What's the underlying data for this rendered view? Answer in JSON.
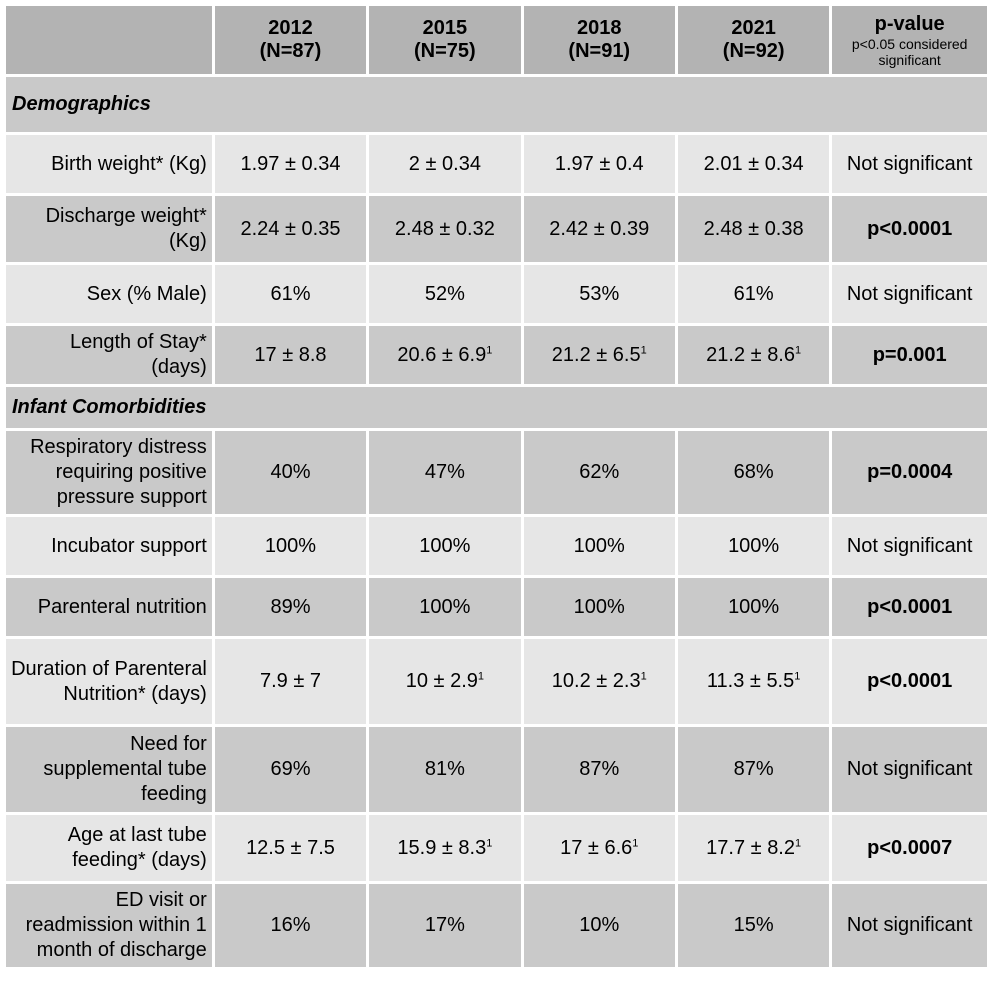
{
  "header": {
    "columns": [
      {
        "year": "2012",
        "n": "(N=87)"
      },
      {
        "year": "2015",
        "n": "(N=75)"
      },
      {
        "year": "2018",
        "n": "(N=91)"
      },
      {
        "year": "2021",
        "n": "(N=92)"
      }
    ],
    "pvalue_title": "p-value",
    "pvalue_note": "p<0.05 considered significant"
  },
  "sections": {
    "demographics": "Demographics",
    "comorbidities": "Infant Comorbidities"
  },
  "rows": [
    {
      "label": "Birth weight* (Kg)",
      "values": [
        "1.97 ± 0.34",
        "2 ± 0.34",
        "1.97 ± 0.4",
        "2.01 ± 0.34"
      ],
      "p": "Not significant",
      "sig": false
    },
    {
      "label": "Discharge weight* (Kg)",
      "values": [
        "2.24 ± 0.35",
        "2.48 ± 0.32",
        "2.42 ± 0.39",
        "2.48 ± 0.38"
      ],
      "p": "p<0.0001",
      "sig": true
    },
    {
      "label": "Sex (% Male)",
      "values": [
        "61%",
        "52%",
        "53%",
        "61%"
      ],
      "p": "Not significant",
      "sig": false
    },
    {
      "label": "Length of Stay* (days)",
      "values": [
        "17 ± 8.8",
        "20.6 ± 6.9",
        "21.2 ± 6.5",
        "21.2 ± 8.6"
      ],
      "sups": [
        "",
        "1",
        "1",
        "1"
      ],
      "p": "p=0.001",
      "sig": true
    },
    {
      "label": "Respiratory distress requiring positive pressure support",
      "values": [
        "40%",
        "47%",
        "62%",
        "68%"
      ],
      "p": "p=0.0004",
      "sig": true
    },
    {
      "label": "Incubator support",
      "values": [
        "100%",
        "100%",
        "100%",
        "100%"
      ],
      "p": "Not significant",
      "sig": false
    },
    {
      "label": "Parenteral nutrition",
      "values": [
        "89%",
        "100%",
        "100%",
        "100%"
      ],
      "p": "p<0.0001",
      "sig": true
    },
    {
      "label": "Duration of Parenteral Nutrition* (days)",
      "values": [
        "7.9 ± 7",
        "10 ± 2.9",
        "10.2 ± 2.3",
        "11.3 ± 5.5"
      ],
      "sups": [
        "",
        "1",
        "1",
        "1"
      ],
      "p": "p<0.0001",
      "sig": true
    },
    {
      "label": "Need for supplemental tube feeding",
      "values": [
        "69%",
        "81%",
        "87%",
        "87%"
      ],
      "p": "Not significant",
      "sig": false
    },
    {
      "label": "Age at last tube feeding* (days)",
      "values": [
        "12.5 ± 7.5",
        "15.9 ± 8.3",
        "17 ± 6.6",
        "17.7 ± 8.2"
      ],
      "sups": [
        "",
        "1",
        "1",
        "1"
      ],
      "p": "p<0.0007",
      "sig": true
    },
    {
      "label": "ED visit or readmission within 1 month of discharge",
      "values": [
        "16%",
        "17%",
        "10%",
        "15%"
      ],
      "p": "Not significant",
      "sig": false
    }
  ]
}
